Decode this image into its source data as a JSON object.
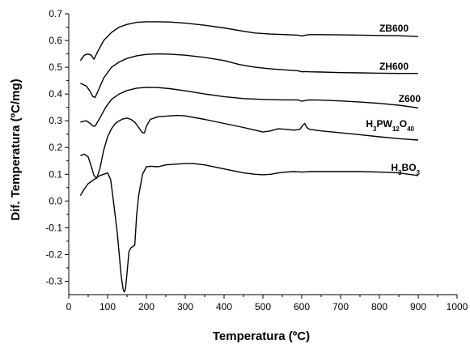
{
  "chart_data": {
    "type": "line",
    "xlabel": "Temperatura (ºC)",
    "ylabel": "Dif. Temperatura (ºC/mg)",
    "xlim": [
      0,
      1000
    ],
    "ylim": [
      -0.35,
      0.7
    ],
    "x_ticks": [
      "0",
      "100",
      "200",
      "300",
      "400",
      "500",
      "600",
      "700",
      "800",
      "900",
      "1000"
    ],
    "y_ticks": [
      "0.7",
      "0.6",
      "0.5",
      "0.4",
      "0.3",
      "0.2",
      "0.1",
      "0.0",
      "-0.1",
      "-0.2",
      "-0.3"
    ],
    "grid": false,
    "legend": "none",
    "series": [
      {
        "name": "ZB600",
        "x": [
          30,
          40,
          50,
          58,
          65,
          75,
          90,
          110,
          130,
          150,
          175,
          200,
          230,
          260,
          300,
          350,
          400,
          440,
          480,
          520,
          560,
          590,
          600,
          610,
          620,
          650,
          700,
          750,
          800,
          850,
          900
        ],
        "y": [
          0.525,
          0.545,
          0.55,
          0.545,
          0.53,
          0.56,
          0.6,
          0.63,
          0.65,
          0.66,
          0.668,
          0.67,
          0.67,
          0.669,
          0.665,
          0.657,
          0.647,
          0.637,
          0.628,
          0.624,
          0.622,
          0.62,
          0.617,
          0.62,
          0.622,
          0.622,
          0.621,
          0.62,
          0.619,
          0.618,
          0.615
        ]
      },
      {
        "name": "ZH600",
        "x": [
          30,
          45,
          55,
          62,
          68,
          75,
          90,
          110,
          130,
          150,
          175,
          200,
          230,
          260,
          300,
          350,
          400,
          440,
          480,
          520,
          560,
          590,
          600,
          610,
          620,
          650,
          700,
          750,
          800,
          850,
          900
        ],
        "y": [
          0.44,
          0.43,
          0.41,
          0.39,
          0.387,
          0.41,
          0.46,
          0.5,
          0.52,
          0.533,
          0.543,
          0.548,
          0.55,
          0.549,
          0.545,
          0.537,
          0.525,
          0.51,
          0.5,
          0.494,
          0.49,
          0.487,
          0.483,
          0.484,
          0.483,
          0.482,
          0.48,
          0.479,
          0.478,
          0.477,
          0.477
        ]
      },
      {
        "name": "Z600",
        "x": [
          30,
          45,
          55,
          62,
          68,
          80,
          95,
          110,
          130,
          150,
          175,
          200,
          230,
          260,
          300,
          350,
          400,
          450,
          500,
          550,
          590,
          600,
          610,
          620,
          650,
          700,
          750,
          800,
          850,
          900
        ],
        "y": [
          0.295,
          0.3,
          0.29,
          0.28,
          0.28,
          0.31,
          0.35,
          0.38,
          0.4,
          0.413,
          0.422,
          0.425,
          0.424,
          0.42,
          0.412,
          0.4,
          0.39,
          0.383,
          0.38,
          0.378,
          0.378,
          0.373,
          0.376,
          0.378,
          0.377,
          0.374,
          0.37,
          0.365,
          0.358,
          0.348
        ]
      },
      {
        "name": "H3PW12O40",
        "x": [
          30,
          40,
          50,
          58,
          65,
          72,
          80,
          90,
          100,
          110,
          120,
          130,
          140,
          150,
          160,
          170,
          180,
          190,
          195,
          200,
          210,
          230,
          260,
          280,
          300,
          350,
          400,
          450,
          480,
          500,
          520,
          540,
          560,
          580,
          595,
          603,
          608,
          613,
          620,
          650,
          700,
          750,
          800,
          850,
          900
        ],
        "y": [
          0.17,
          0.175,
          0.165,
          0.13,
          0.095,
          0.085,
          0.12,
          0.19,
          0.24,
          0.27,
          0.29,
          0.3,
          0.307,
          0.31,
          0.305,
          0.295,
          0.275,
          0.255,
          0.255,
          0.28,
          0.305,
          0.315,
          0.318,
          0.32,
          0.318,
          0.305,
          0.29,
          0.275,
          0.265,
          0.258,
          0.262,
          0.27,
          0.268,
          0.265,
          0.268,
          0.283,
          0.29,
          0.275,
          0.268,
          0.262,
          0.255,
          0.248,
          0.24,
          0.233,
          0.228
        ]
      },
      {
        "name": "H3BO3",
        "x": [
          30,
          40,
          50,
          60,
          70,
          80,
          90,
          100,
          108,
          115,
          120,
          125,
          130,
          135,
          140,
          143,
          146,
          150,
          155,
          160,
          165,
          170,
          175,
          180,
          185,
          190,
          200,
          210,
          230,
          250,
          280,
          300,
          320,
          350,
          400,
          450,
          480,
          500,
          520,
          540,
          560,
          580,
          600,
          620,
          650,
          700,
          750,
          800,
          850,
          900
        ],
        "y": [
          0.02,
          0.045,
          0.065,
          0.075,
          0.085,
          0.095,
          0.1,
          0.105,
          0.08,
          0.0,
          -0.06,
          -0.12,
          -0.2,
          -0.28,
          -0.33,
          -0.34,
          -0.33,
          -0.27,
          -0.19,
          -0.175,
          -0.17,
          -0.165,
          -0.05,
          0.02,
          0.06,
          0.1,
          0.128,
          0.13,
          0.128,
          0.135,
          0.138,
          0.14,
          0.14,
          0.135,
          0.12,
          0.105,
          0.1,
          0.098,
          0.1,
          0.105,
          0.108,
          0.11,
          0.108,
          0.11,
          0.11,
          0.11,
          0.11,
          0.108,
          0.105,
          0.095
        ]
      }
    ]
  }
}
